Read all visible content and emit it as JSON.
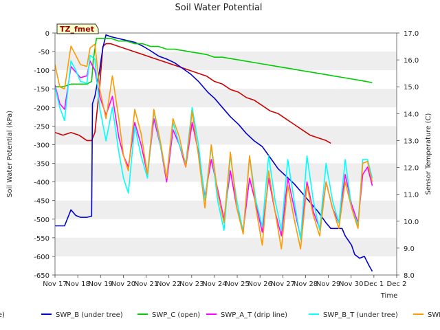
{
  "chart_data": {
    "type": "line",
    "title": "Soil Water Potential",
    "xlabel": "Time",
    "ylabel": "Soil Water Potential (kPa)",
    "y2label": "Sensor Temperature (C)",
    "annotation": "TZ_fmet",
    "ylim": [
      -650,
      0
    ],
    "y2lim": [
      8,
      17
    ],
    "y_ticks": [
      0,
      -50,
      -100,
      -150,
      -200,
      -250,
      -300,
      -350,
      -400,
      -450,
      -500,
      -550,
      -600,
      -650
    ],
    "y2_ticks": [
      8.0,
      9.0,
      10.0,
      11.0,
      12.0,
      13.0,
      14.0,
      15.0,
      16.0,
      17.0
    ],
    "x_range_days": [
      0,
      15
    ],
    "x_tick_labels": [
      "Nov 17",
      "Nov 18",
      "Nov 19",
      "Nov 20",
      "Nov 21",
      "Nov 22",
      "Nov 23",
      "Nov 24",
      "Nov 25",
      "Nov 26",
      "Nov 27",
      "Nov 28",
      "Nov 29",
      "Nov 30",
      "Dec 1",
      "Dec 2"
    ],
    "grid": "horizontal bands",
    "legend_position": "bottom",
    "series": [
      {
        "name": "SWP_A (drip line)",
        "legend_label": "SWP_A (drip line)",
        "color": "#cc0000",
        "axis": "right",
        "points": [
          [
            0.0,
            13.3
          ],
          [
            0.5,
            13.2
          ],
          [
            1.0,
            13.3
          ],
          [
            1.5,
            13.2
          ],
          [
            2.0,
            13.0
          ],
          [
            2.3,
            13.0
          ],
          [
            2.5,
            13.3
          ],
          [
            2.8,
            15.0
          ],
          [
            3.0,
            16.5
          ],
          [
            3.2,
            16.6
          ],
          [
            3.5,
            16.6
          ],
          [
            4.0,
            16.5
          ],
          [
            4.5,
            16.4
          ],
          [
            5.0,
            16.3
          ],
          [
            5.5,
            16.2
          ],
          [
            6.0,
            16.1
          ],
          [
            6.5,
            16.0
          ],
          [
            7.0,
            15.9
          ],
          [
            7.5,
            15.8
          ],
          [
            8.0,
            15.7
          ],
          [
            8.5,
            15.6
          ],
          [
            9.0,
            15.5
          ],
          [
            9.5,
            15.4
          ],
          [
            10.0,
            15.2
          ],
          [
            10.5,
            15.1
          ],
          [
            11.0,
            14.9
          ],
          [
            11.5,
            14.8
          ],
          [
            12.0,
            14.6
          ],
          [
            12.5,
            14.5
          ],
          [
            13.0,
            14.3
          ],
          [
            13.5,
            14.1
          ],
          [
            14.0,
            14.0
          ],
          [
            14.5,
            13.8
          ],
          [
            15.0,
            13.6
          ],
          [
            15.5,
            13.4
          ],
          [
            16.0,
            13.2
          ],
          [
            16.5,
            13.1
          ],
          [
            17.0,
            13.0
          ],
          [
            17.3,
            12.9
          ]
        ]
      },
      {
        "name": "SWP_B (under tree)",
        "legend_label": "SWP_B (under tree)",
        "color": "#0000cc",
        "axis": "left",
        "points": [
          [
            0.0,
            -518
          ],
          [
            0.6,
            -518
          ],
          [
            1.0,
            -475
          ],
          [
            1.3,
            -490
          ],
          [
            1.6,
            -495
          ],
          [
            2.0,
            -495
          ],
          [
            2.3,
            -492
          ],
          [
            2.35,
            -190
          ],
          [
            2.5,
            -170
          ],
          [
            2.8,
            -100
          ],
          [
            3.0,
            -40
          ],
          [
            3.2,
            -5
          ],
          [
            3.5,
            -10
          ],
          [
            4.0,
            -15
          ],
          [
            4.5,
            -20
          ],
          [
            5.0,
            -25
          ],
          [
            5.5,
            -35
          ],
          [
            6.0,
            -48
          ],
          [
            6.5,
            -62
          ],
          [
            7.0,
            -70
          ],
          [
            7.5,
            -80
          ],
          [
            8.0,
            -95
          ],
          [
            8.5,
            -110
          ],
          [
            9.0,
            -130
          ],
          [
            9.3,
            -145
          ],
          [
            9.6,
            -160
          ],
          [
            10.0,
            -175
          ],
          [
            10.5,
            -200
          ],
          [
            11.0,
            -225
          ],
          [
            11.5,
            -245
          ],
          [
            12.0,
            -270
          ],
          [
            12.5,
            -290
          ],
          [
            13.0,
            -305
          ],
          [
            13.5,
            -335
          ],
          [
            14.0,
            -365
          ],
          [
            14.5,
            -385
          ],
          [
            15.0,
            -405
          ],
          [
            15.5,
            -430
          ],
          [
            16.0,
            -455
          ],
          [
            16.5,
            -480
          ],
          [
            17.0,
            -510
          ],
          [
            17.3,
            -525
          ],
          [
            18.0,
            -525
          ],
          [
            18.2,
            -545
          ],
          [
            18.6,
            -570
          ],
          [
            18.8,
            -595
          ],
          [
            19.1,
            -605
          ],
          [
            19.4,
            -600
          ],
          [
            19.7,
            -625
          ],
          [
            19.9,
            -640
          ]
        ]
      },
      {
        "name": "SWP_C (open)",
        "legend_label": "SWP_C (open)",
        "color": "#00cc00",
        "axis": "right",
        "points": [
          [
            0.0,
            15.0
          ],
          [
            0.5,
            15.0
          ],
          [
            1.0,
            15.1
          ],
          [
            1.5,
            15.1
          ],
          [
            2.0,
            15.1
          ],
          [
            2.3,
            15.2
          ],
          [
            2.4,
            16.0
          ],
          [
            2.6,
            16.8
          ],
          [
            3.0,
            16.8
          ],
          [
            3.5,
            16.8
          ],
          [
            4.0,
            16.7
          ],
          [
            4.5,
            16.7
          ],
          [
            5.0,
            16.6
          ],
          [
            5.5,
            16.6
          ],
          [
            6.0,
            16.5
          ],
          [
            6.5,
            16.5
          ],
          [
            7.0,
            16.4
          ],
          [
            7.5,
            16.4
          ],
          [
            8.0,
            16.35
          ],
          [
            8.5,
            16.3
          ],
          [
            9.0,
            16.25
          ],
          [
            9.5,
            16.2
          ],
          [
            10.0,
            16.1
          ],
          [
            10.5,
            16.1
          ],
          [
            11.0,
            16.05
          ],
          [
            11.5,
            16.0
          ],
          [
            12.0,
            15.95
          ],
          [
            12.5,
            15.9
          ],
          [
            13.0,
            15.85
          ],
          [
            13.5,
            15.8
          ],
          [
            14.0,
            15.75
          ],
          [
            14.5,
            15.7
          ],
          [
            15.0,
            15.65
          ],
          [
            15.5,
            15.6
          ],
          [
            16.0,
            15.55
          ],
          [
            16.5,
            15.5
          ],
          [
            17.0,
            15.45
          ],
          [
            17.5,
            15.4
          ],
          [
            18.0,
            15.35
          ],
          [
            18.5,
            15.3
          ],
          [
            19.0,
            15.25
          ],
          [
            19.5,
            15.2
          ],
          [
            19.9,
            15.15
          ]
        ]
      },
      {
        "name": "SWP_A_T (drip line)",
        "legend_label": "SWP_A_T (drip line)",
        "color": "#ff00ff",
        "axis": "left",
        "points": [
          [
            0.0,
            -140
          ],
          [
            0.3,
            -190
          ],
          [
            0.6,
            -205
          ],
          [
            1.0,
            -90
          ],
          [
            1.3,
            -105
          ],
          [
            1.6,
            -120
          ],
          [
            2.0,
            -115
          ],
          [
            2.2,
            -75
          ],
          [
            2.5,
            -100
          ],
          [
            2.8,
            -170
          ],
          [
            3.2,
            -220
          ],
          [
            3.6,
            -170
          ],
          [
            4.0,
            -280
          ],
          [
            4.3,
            -330
          ],
          [
            4.6,
            -360
          ],
          [
            5.0,
            -240
          ],
          [
            5.4,
            -300
          ],
          [
            5.8,
            -380
          ],
          [
            6.2,
            -230
          ],
          [
            6.6,
            -300
          ],
          [
            7.0,
            -400
          ],
          [
            7.4,
            -260
          ],
          [
            7.8,
            -300
          ],
          [
            8.2,
            -360
          ],
          [
            8.6,
            -240
          ],
          [
            9.0,
            -320
          ],
          [
            9.4,
            -440
          ],
          [
            9.8,
            -340
          ],
          [
            10.2,
            -420
          ],
          [
            10.6,
            -500
          ],
          [
            11.0,
            -370
          ],
          [
            11.4,
            -470
          ],
          [
            11.8,
            -530
          ],
          [
            12.2,
            -390
          ],
          [
            12.6,
            -460
          ],
          [
            13.0,
            -535
          ],
          [
            13.4,
            -390
          ],
          [
            13.8,
            -480
          ],
          [
            14.2,
            -545
          ],
          [
            14.6,
            -390
          ],
          [
            15.0,
            -470
          ],
          [
            15.4,
            -550
          ],
          [
            15.8,
            -400
          ],
          [
            16.2,
            -480
          ],
          [
            16.6,
            -525
          ],
          [
            17.0,
            -400
          ],
          [
            17.4,
            -470
          ],
          [
            17.8,
            -510
          ],
          [
            18.2,
            -380
          ],
          [
            18.6,
            -460
          ],
          [
            19.0,
            -510
          ],
          [
            19.3,
            -380
          ],
          [
            19.6,
            -360
          ],
          [
            19.9,
            -410
          ]
        ]
      },
      {
        "name": "SWP_B_T (under tree)",
        "legend_label": "SWP_B_T (under tree)",
        "color": "#00ffff",
        "axis": "left",
        "points": [
          [
            0.0,
            -145
          ],
          [
            0.3,
            -200
          ],
          [
            0.6,
            -235
          ],
          [
            1.0,
            -75
          ],
          [
            1.3,
            -100
          ],
          [
            1.6,
            -130
          ],
          [
            2.0,
            -135
          ],
          [
            2.2,
            -60
          ],
          [
            2.5,
            -70
          ],
          [
            2.8,
            -200
          ],
          [
            3.2,
            -290
          ],
          [
            3.6,
            -200
          ],
          [
            4.0,
            -320
          ],
          [
            4.3,
            -390
          ],
          [
            4.6,
            -430
          ],
          [
            5.0,
            -250
          ],
          [
            5.4,
            -330
          ],
          [
            5.8,
            -390
          ],
          [
            6.2,
            -210
          ],
          [
            6.6,
            -300
          ],
          [
            7.0,
            -390
          ],
          [
            7.4,
            -240
          ],
          [
            7.8,
            -300
          ],
          [
            8.2,
            -350
          ],
          [
            8.6,
            -200
          ],
          [
            9.0,
            -300
          ],
          [
            9.4,
            -450
          ],
          [
            9.8,
            -305
          ],
          [
            10.2,
            -450
          ],
          [
            10.6,
            -530
          ],
          [
            11.0,
            -330
          ],
          [
            11.4,
            -450
          ],
          [
            11.8,
            -535
          ],
          [
            12.2,
            -330
          ],
          [
            12.6,
            -450
          ],
          [
            13.0,
            -520
          ],
          [
            13.4,
            -330
          ],
          [
            13.8,
            -450
          ],
          [
            14.2,
            -530
          ],
          [
            14.6,
            -340
          ],
          [
            15.0,
            -450
          ],
          [
            15.4,
            -555
          ],
          [
            15.8,
            -330
          ],
          [
            16.2,
            -450
          ],
          [
            16.6,
            -530
          ],
          [
            17.0,
            -350
          ],
          [
            17.4,
            -450
          ],
          [
            17.8,
            -510
          ],
          [
            18.2,
            -340
          ],
          [
            18.6,
            -470
          ],
          [
            19.0,
            -515
          ],
          [
            19.3,
            -340
          ],
          [
            19.6,
            -340
          ],
          [
            19.9,
            -390
          ]
        ]
      },
      {
        "name": "SWP_C_T (open)",
        "legend_label": "SWP_C_T (open)",
        "color": "#ff9900",
        "axis": "left",
        "points": [
          [
            0.0,
            -85
          ],
          [
            0.3,
            -145
          ],
          [
            0.6,
            -150
          ],
          [
            1.0,
            -35
          ],
          [
            1.3,
            -60
          ],
          [
            1.6,
            -85
          ],
          [
            2.0,
            -90
          ],
          [
            2.2,
            -40
          ],
          [
            2.5,
            -30
          ],
          [
            2.8,
            -150
          ],
          [
            3.2,
            -230
          ],
          [
            3.6,
            -115
          ],
          [
            4.0,
            -230
          ],
          [
            4.3,
            -330
          ],
          [
            4.6,
            -370
          ],
          [
            5.0,
            -205
          ],
          [
            5.4,
            -270
          ],
          [
            5.8,
            -380
          ],
          [
            6.2,
            -205
          ],
          [
            6.6,
            -290
          ],
          [
            7.0,
            -390
          ],
          [
            7.4,
            -230
          ],
          [
            7.8,
            -280
          ],
          [
            8.2,
            -360
          ],
          [
            8.6,
            -210
          ],
          [
            9.0,
            -330
          ],
          [
            9.4,
            -470
          ],
          [
            9.8,
            -300
          ],
          [
            10.2,
            -430
          ],
          [
            10.6,
            -510
          ],
          [
            11.0,
            -320
          ],
          [
            11.4,
            -470
          ],
          [
            11.8,
            -540
          ],
          [
            12.2,
            -330
          ],
          [
            12.6,
            -470
          ],
          [
            13.0,
            -570
          ],
          [
            13.4,
            -370
          ],
          [
            13.8,
            -480
          ],
          [
            14.2,
            -580
          ],
          [
            14.6,
            -410
          ],
          [
            15.0,
            -500
          ],
          [
            15.4,
            -580
          ],
          [
            15.8,
            -410
          ],
          [
            16.2,
            -490
          ],
          [
            16.6,
            -545
          ],
          [
            17.0,
            -400
          ],
          [
            17.4,
            -470
          ],
          [
            17.8,
            -525
          ],
          [
            18.2,
            -400
          ],
          [
            18.6,
            -470
          ],
          [
            19.0,
            -525
          ],
          [
            19.3,
            -350
          ],
          [
            19.6,
            -345
          ],
          [
            19.9,
            -400
          ]
        ]
      }
    ]
  }
}
